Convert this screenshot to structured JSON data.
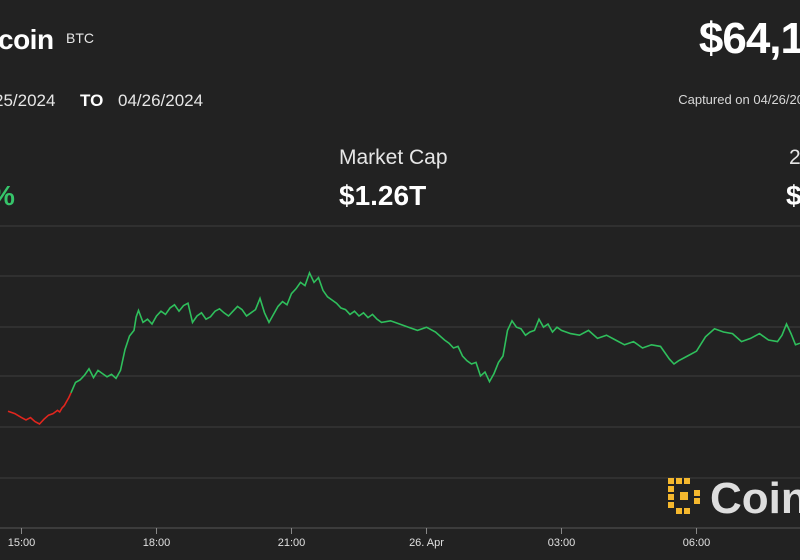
{
  "header": {
    "title": "coin",
    "ticker": "BTC",
    "price": "$64,1",
    "date_from": "25/2024",
    "date_to_label": "TO",
    "date_to": "04/26/2024",
    "captured": "Captured on 04/26/20"
  },
  "stats": [
    {
      "label": "",
      "value": "%",
      "color": "#36c46a"
    },
    {
      "label": "Market Cap",
      "value": "$1.26T"
    },
    {
      "label": "2",
      "value": "$"
    }
  ],
  "watermark": {
    "text": "Coin",
    "icon": "coindesk-logo-icon",
    "icon_color": "#f5b82e"
  },
  "chart_data": {
    "type": "line",
    "x_ticks": [
      "15:00",
      "18:00",
      "21:00",
      "26. Apr",
      "03:00",
      "06:00"
    ],
    "x_tick_hours": [
      0,
      3,
      6,
      9,
      12,
      15
    ],
    "x_range": [
      -0.3,
      17.3
    ],
    "gridlines": true,
    "colors": {
      "down": "#e0261e",
      "up": "#2fbf5c",
      "grid": "#3d3d3d"
    },
    "down_series": [
      [
        -0.3,
        -0.39
      ],
      [
        -0.15,
        -0.42
      ],
      [
        0.0,
        -0.47
      ],
      [
        0.1,
        -0.5
      ],
      [
        0.2,
        -0.47
      ],
      [
        0.3,
        -0.52
      ],
      [
        0.4,
        -0.55
      ],
      [
        0.5,
        -0.49
      ],
      [
        0.6,
        -0.44
      ],
      [
        0.7,
        -0.42
      ],
      [
        0.8,
        -0.38
      ],
      [
        0.85,
        -0.4
      ],
      [
        0.9,
        -0.35
      ],
      [
        0.95,
        -0.32
      ],
      [
        1.0,
        -0.27
      ],
      [
        1.05,
        -0.22
      ],
      [
        1.1,
        -0.16
      ]
    ],
    "up_series": [
      [
        1.1,
        -0.16
      ],
      [
        1.2,
        -0.03
      ],
      [
        1.3,
        0.0
      ],
      [
        1.4,
        0.06
      ],
      [
        1.5,
        0.14
      ],
      [
        1.6,
        0.03
      ],
      [
        1.7,
        0.12
      ],
      [
        1.8,
        0.08
      ],
      [
        1.9,
        0.04
      ],
      [
        2.0,
        0.07
      ],
      [
        2.1,
        0.02
      ],
      [
        2.2,
        0.12
      ],
      [
        2.3,
        0.38
      ],
      [
        2.4,
        0.55
      ],
      [
        2.5,
        0.62
      ],
      [
        2.55,
        0.79
      ],
      [
        2.6,
        0.87
      ],
      [
        2.7,
        0.72
      ],
      [
        2.8,
        0.76
      ],
      [
        2.9,
        0.7
      ],
      [
        3.0,
        0.8
      ],
      [
        3.1,
        0.86
      ],
      [
        3.2,
        0.82
      ],
      [
        3.3,
        0.9
      ],
      [
        3.4,
        0.94
      ],
      [
        3.5,
        0.86
      ],
      [
        3.6,
        0.93
      ],
      [
        3.7,
        0.96
      ],
      [
        3.8,
        0.72
      ],
      [
        3.9,
        0.8
      ],
      [
        4.0,
        0.84
      ],
      [
        4.1,
        0.76
      ],
      [
        4.2,
        0.79
      ],
      [
        4.3,
        0.86
      ],
      [
        4.4,
        0.89
      ],
      [
        4.5,
        0.84
      ],
      [
        4.6,
        0.8
      ],
      [
        4.7,
        0.86
      ],
      [
        4.8,
        0.92
      ],
      [
        4.9,
        0.88
      ],
      [
        5.0,
        0.8
      ],
      [
        5.1,
        0.84
      ],
      [
        5.2,
        0.88
      ],
      [
        5.3,
        1.02
      ],
      [
        5.4,
        0.84
      ],
      [
        5.5,
        0.72
      ],
      [
        5.6,
        0.82
      ],
      [
        5.7,
        0.92
      ],
      [
        5.8,
        0.98
      ],
      [
        5.9,
        0.94
      ],
      [
        6.0,
        1.08
      ],
      [
        6.1,
        1.14
      ],
      [
        6.2,
        1.22
      ],
      [
        6.3,
        1.18
      ],
      [
        6.4,
        1.34
      ],
      [
        6.5,
        1.22
      ],
      [
        6.6,
        1.28
      ],
      [
        6.7,
        1.12
      ],
      [
        6.8,
        1.04
      ],
      [
        6.9,
        1.0
      ],
      [
        7.0,
        0.96
      ],
      [
        7.1,
        0.9
      ],
      [
        7.2,
        0.88
      ],
      [
        7.3,
        0.82
      ],
      [
        7.4,
        0.86
      ],
      [
        7.5,
        0.8
      ],
      [
        7.6,
        0.84
      ],
      [
        7.7,
        0.78
      ],
      [
        7.8,
        0.82
      ],
      [
        7.9,
        0.76
      ],
      [
        8.0,
        0.72
      ],
      [
        8.2,
        0.74
      ],
      [
        8.4,
        0.7
      ],
      [
        8.6,
        0.66
      ],
      [
        8.8,
        0.62
      ],
      [
        9.0,
        0.66
      ],
      [
        9.2,
        0.6
      ],
      [
        9.4,
        0.5
      ],
      [
        9.5,
        0.46
      ],
      [
        9.6,
        0.4
      ],
      [
        9.7,
        0.42
      ],
      [
        9.8,
        0.3
      ],
      [
        9.9,
        0.24
      ],
      [
        10.0,
        0.2
      ],
      [
        10.1,
        0.22
      ],
      [
        10.2,
        0.05
      ],
      [
        10.3,
        0.1
      ],
      [
        10.4,
        -0.02
      ],
      [
        10.5,
        0.08
      ],
      [
        10.6,
        0.22
      ],
      [
        10.7,
        0.3
      ],
      [
        10.8,
        0.62
      ],
      [
        10.9,
        0.74
      ],
      [
        11.0,
        0.66
      ],
      [
        11.1,
        0.64
      ],
      [
        11.2,
        0.56
      ],
      [
        11.3,
        0.6
      ],
      [
        11.4,
        0.62
      ],
      [
        11.5,
        0.76
      ],
      [
        11.6,
        0.66
      ],
      [
        11.7,
        0.7
      ],
      [
        11.8,
        0.6
      ],
      [
        11.9,
        0.66
      ],
      [
        12.0,
        0.62
      ],
      [
        12.2,
        0.58
      ],
      [
        12.4,
        0.56
      ],
      [
        12.6,
        0.62
      ],
      [
        12.8,
        0.52
      ],
      [
        13.0,
        0.56
      ],
      [
        13.2,
        0.5
      ],
      [
        13.4,
        0.44
      ],
      [
        13.6,
        0.48
      ],
      [
        13.8,
        0.4
      ],
      [
        14.0,
        0.44
      ],
      [
        14.2,
        0.42
      ],
      [
        14.4,
        0.26
      ],
      [
        14.5,
        0.2
      ],
      [
        14.6,
        0.24
      ],
      [
        14.8,
        0.3
      ],
      [
        15.0,
        0.36
      ],
      [
        15.2,
        0.54
      ],
      [
        15.4,
        0.64
      ],
      [
        15.6,
        0.6
      ],
      [
        15.8,
        0.58
      ],
      [
        16.0,
        0.48
      ],
      [
        16.2,
        0.52
      ],
      [
        16.4,
        0.58
      ],
      [
        16.6,
        0.5
      ],
      [
        16.8,
        0.48
      ],
      [
        16.9,
        0.56
      ],
      [
        17.0,
        0.7
      ],
      [
        17.1,
        0.58
      ],
      [
        17.2,
        0.44
      ],
      [
        17.3,
        0.46
      ]
    ]
  }
}
